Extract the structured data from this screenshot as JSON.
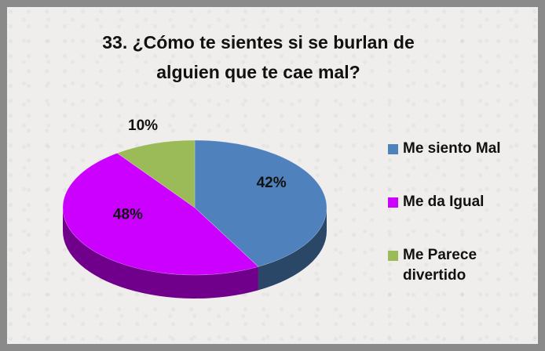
{
  "chart_data": {
    "type": "pie",
    "title": [
      "33. ¿Cómo te sientes si se burlan  de",
      "alguien que te cae mal?"
    ],
    "categories": [
      "Me siento Mal",
      "Me da Igual",
      "Me Parece divertido"
    ],
    "values": [
      42,
      48,
      10
    ],
    "value_labels": [
      "42%",
      "48%",
      "10%"
    ],
    "colors": [
      "#4f81bd",
      "#cc00ff",
      "#9bbb59"
    ],
    "legend": "right"
  }
}
